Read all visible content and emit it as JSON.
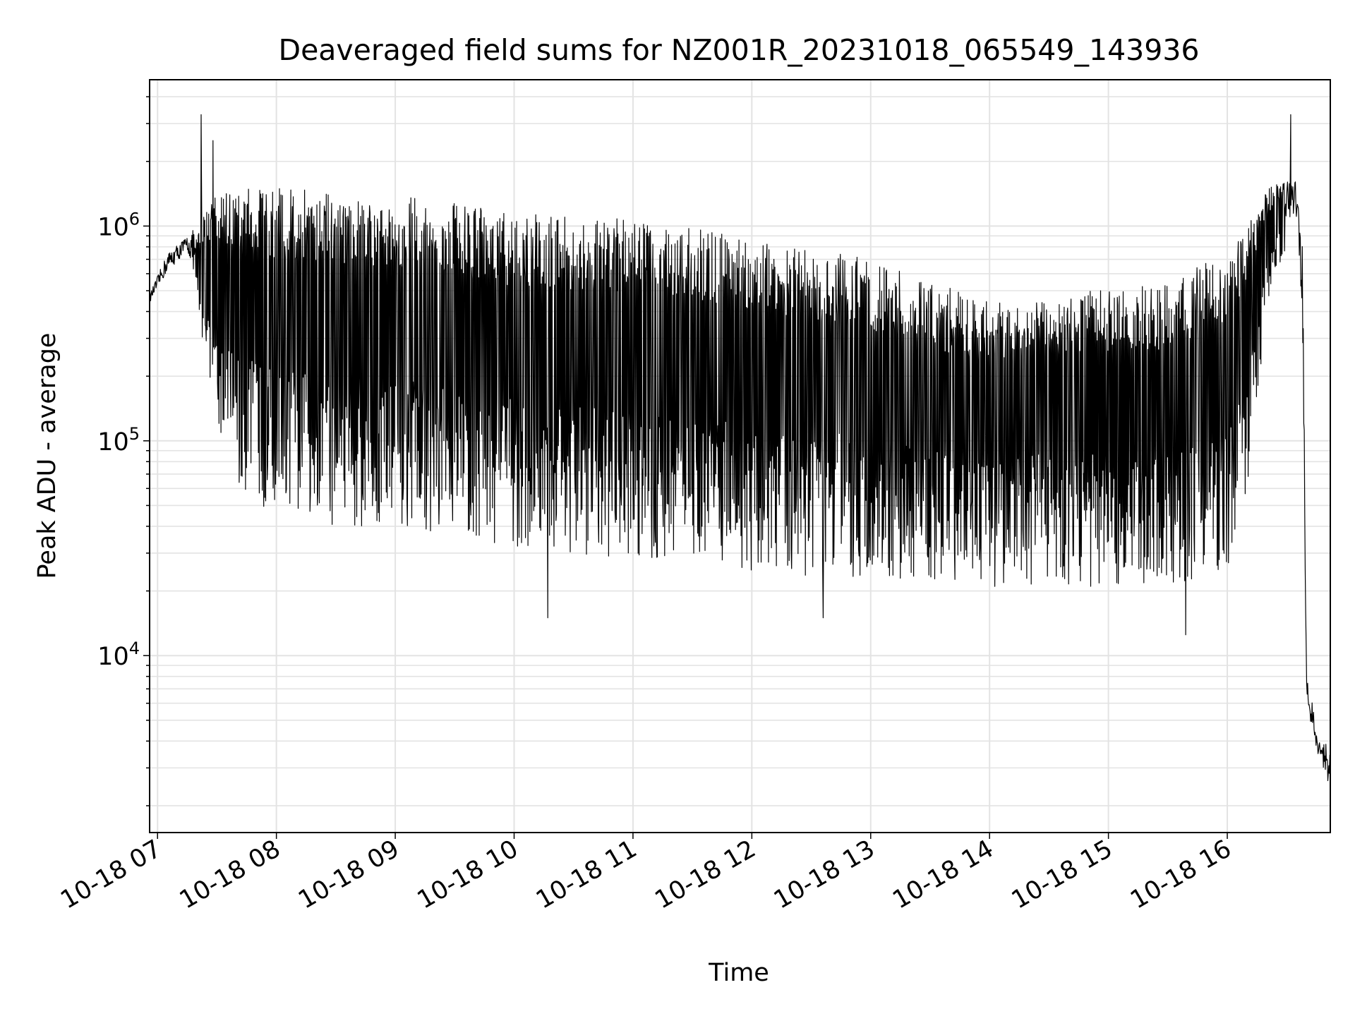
{
  "chart_data": {
    "type": "line",
    "title": "Deaveraged field sums for NZ001R_20231018_065549_143936",
    "xlabel": "Time",
    "ylabel": "Peak ADU - average",
    "x_scale": "time",
    "y_scale": "log",
    "xlim": [
      "2023-10-18 06:56",
      "2023-10-18 16:52"
    ],
    "ylim": [
      1500,
      4800000
    ],
    "grid": true,
    "line_color": "#000000",
    "x_ticks": [
      {
        "t": "2023-10-18 07:00",
        "label": "10-18 07"
      },
      {
        "t": "2023-10-18 08:00",
        "label": "10-18 08"
      },
      {
        "t": "2023-10-18 09:00",
        "label": "10-18 09"
      },
      {
        "t": "2023-10-18 10:00",
        "label": "10-18 10"
      },
      {
        "t": "2023-10-18 11:00",
        "label": "10-18 11"
      },
      {
        "t": "2023-10-18 12:00",
        "label": "10-18 12"
      },
      {
        "t": "2023-10-18 13:00",
        "label": "10-18 13"
      },
      {
        "t": "2023-10-18 14:00",
        "label": "10-18 14"
      },
      {
        "t": "2023-10-18 15:00",
        "label": "10-18 15"
      },
      {
        "t": "2023-10-18 16:00",
        "label": "10-18 16"
      }
    ],
    "y_ticks": [
      {
        "value": 10000,
        "base": "10",
        "exp": "4"
      },
      {
        "value": 100000,
        "base": "10",
        "exp": "5"
      },
      {
        "value": 1000000,
        "base": "10",
        "exp": "6"
      }
    ],
    "envelope": [
      {
        "t": "2023-10-18 06:56",
        "low": 420000,
        "high": 480000
      },
      {
        "t": "2023-10-18 07:05",
        "low": 550000,
        "high": 750000
      },
      {
        "t": "2023-10-18 07:15",
        "low": 700000,
        "high": 900000
      },
      {
        "t": "2023-10-18 07:20",
        "low": 400000,
        "high": 1000000
      },
      {
        "t": "2023-10-18 07:30",
        "low": 120000,
        "high": 1400000
      },
      {
        "t": "2023-10-18 07:40",
        "low": 60000,
        "high": 1500000
      },
      {
        "t": "2023-10-18 08:00",
        "low": 45000,
        "high": 1500000
      },
      {
        "t": "2023-10-18 08:30",
        "low": 40000,
        "high": 1450000
      },
      {
        "t": "2023-10-18 09:00",
        "low": 40000,
        "high": 1400000
      },
      {
        "t": "2023-10-18 09:30",
        "low": 35000,
        "high": 1300000
      },
      {
        "t": "2023-10-18 10:00",
        "low": 32000,
        "high": 1150000
      },
      {
        "t": "2023-10-18 10:30",
        "low": 30000,
        "high": 1100000
      },
      {
        "t": "2023-10-18 11:00",
        "low": 28000,
        "high": 1100000
      },
      {
        "t": "2023-10-18 11:30",
        "low": 28000,
        "high": 1000000
      },
      {
        "t": "2023-10-18 12:00",
        "low": 25000,
        "high": 900000
      },
      {
        "t": "2023-10-18 12:30",
        "low": 23000,
        "high": 800000
      },
      {
        "t": "2023-10-18 13:00",
        "low": 22000,
        "high": 700000
      },
      {
        "t": "2023-10-18 13:30",
        "low": 22000,
        "high": 550000
      },
      {
        "t": "2023-10-18 14:00",
        "low": 21000,
        "high": 450000
      },
      {
        "t": "2023-10-18 14:30",
        "low": 21000,
        "high": 500000
      },
      {
        "t": "2023-10-18 15:00",
        "low": 21000,
        "high": 500000
      },
      {
        "t": "2023-10-18 15:30",
        "low": 21000,
        "high": 550000
      },
      {
        "t": "2023-10-18 16:00",
        "low": 25000,
        "high": 750000
      },
      {
        "t": "2023-10-18 16:10",
        "low": 60000,
        "high": 1000000
      },
      {
        "t": "2023-10-18 16:20",
        "low": 400000,
        "high": 1500000
      },
      {
        "t": "2023-10-18 16:30",
        "low": 800000,
        "high": 1700000
      },
      {
        "t": "2023-10-18 16:35",
        "low": 900000,
        "high": 1600000
      },
      {
        "t": "2023-10-18 16:38",
        "low": 300000,
        "high": 800000
      },
      {
        "t": "2023-10-18 16:40",
        "low": 5000,
        "high": 8000
      },
      {
        "t": "2023-10-18 16:45",
        "low": 3000,
        "high": 5000
      },
      {
        "t": "2023-10-18 16:52",
        "low": 2000,
        "high": 3500
      }
    ],
    "spikes": [
      {
        "t": "2023-10-18 07:22",
        "value": 3300000
      },
      {
        "t": "2023-10-18 07:28",
        "value": 2500000
      },
      {
        "t": "2023-10-18 16:32",
        "value": 3300000
      }
    ],
    "dips": [
      {
        "t": "2023-10-18 10:17",
        "value": 15000
      },
      {
        "t": "2023-10-18 12:36",
        "value": 15000
      },
      {
        "t": "2023-10-18 15:39",
        "value": 12500
      }
    ]
  }
}
